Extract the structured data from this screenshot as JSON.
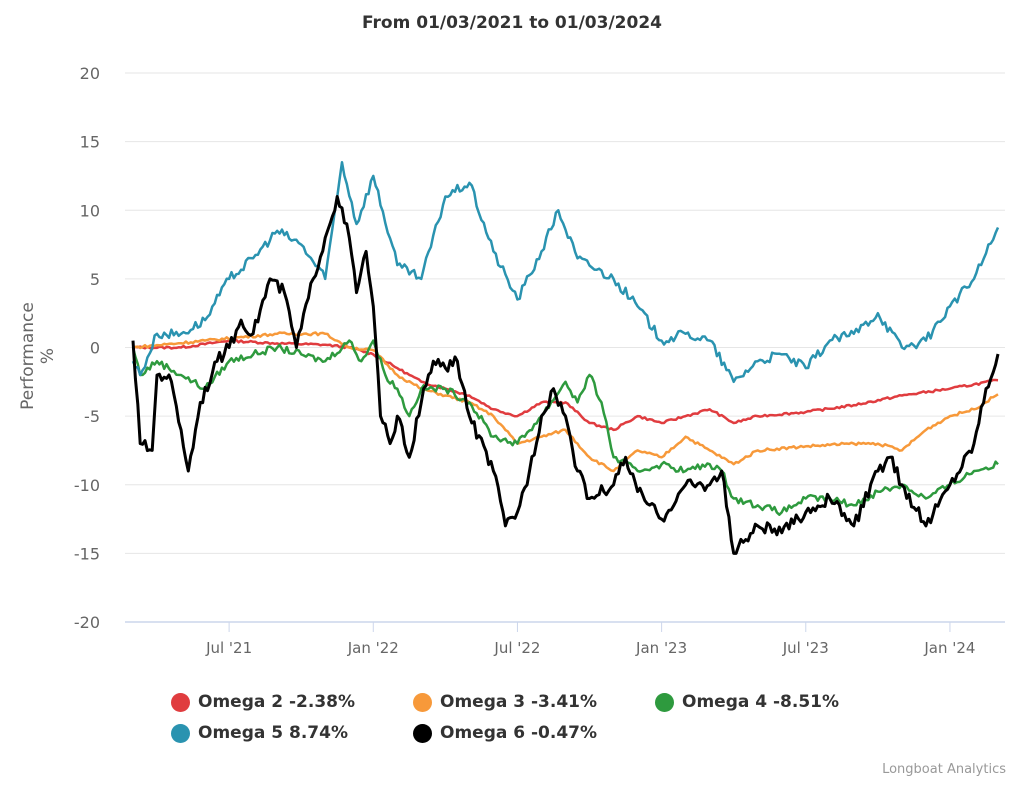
{
  "chart_data": {
    "type": "line",
    "title": "From 01/03/2021 to 01/03/2024",
    "xlabel": "",
    "ylabel": "Performance %",
    "ylim": [
      -20,
      20
    ],
    "yticks": [
      "20",
      "15",
      "10",
      "5",
      "0",
      "-5",
      "-10",
      "-15",
      "-20"
    ],
    "ytick_values": [
      20,
      15,
      10,
      5,
      0,
      -5,
      -10,
      -15,
      -20
    ],
    "x_unit": "months since Mar 2021",
    "xlim": [
      0,
      36
    ],
    "xticks": [
      {
        "label": "Jul '21",
        "x": 4
      },
      {
        "label": "Jan '22",
        "x": 10
      },
      {
        "label": "Jul '22",
        "x": 16
      },
      {
        "label": "Jan '23",
        "x": 22
      },
      {
        "label": "Jul '23",
        "x": 28
      },
      {
        "label": "Jan '24",
        "x": 34
      }
    ],
    "grid": true,
    "legend_position": "bottom",
    "series": [
      {
        "name": "Omega 2",
        "legend": "Omega 2 -2.38%",
        "color": "#e03c3f",
        "points": [
          [
            0,
            0
          ],
          [
            2,
            0
          ],
          [
            4,
            0.5
          ],
          [
            6,
            0.3
          ],
          [
            8,
            0.2
          ],
          [
            9,
            0
          ],
          [
            10,
            -0.5
          ],
          [
            11,
            -1.5
          ],
          [
            12,
            -2.5
          ],
          [
            13,
            -3
          ],
          [
            14,
            -3.5
          ],
          [
            15,
            -4.5
          ],
          [
            16,
            -5
          ],
          [
            17,
            -4
          ],
          [
            18,
            -4
          ],
          [
            19,
            -5.5
          ],
          [
            20,
            -6
          ],
          [
            21,
            -5
          ],
          [
            22,
            -5.5
          ],
          [
            23,
            -5
          ],
          [
            24,
            -4.5
          ],
          [
            25,
            -5.5
          ],
          [
            26,
            -5
          ],
          [
            28,
            -4.7
          ],
          [
            30,
            -4.2
          ],
          [
            32,
            -3.5
          ],
          [
            34,
            -3
          ],
          [
            36,
            -2.38
          ]
        ]
      },
      {
        "name": "Omega 3",
        "legend": "Omega 3 -3.41%",
        "color": "#f7993a",
        "points": [
          [
            0,
            0
          ],
          [
            3,
            0.5
          ],
          [
            6,
            1
          ],
          [
            8,
            1
          ],
          [
            9,
            0
          ],
          [
            10,
            -0.2
          ],
          [
            11,
            -2
          ],
          [
            12,
            -3
          ],
          [
            13,
            -3.5
          ],
          [
            14,
            -4
          ],
          [
            15,
            -5
          ],
          [
            16,
            -7
          ],
          [
            17,
            -6.5
          ],
          [
            18,
            -6
          ],
          [
            19,
            -8
          ],
          [
            20,
            -9
          ],
          [
            21,
            -7.5
          ],
          [
            22,
            -8
          ],
          [
            23,
            -6.5
          ],
          [
            24,
            -7.5
          ],
          [
            25,
            -8.5
          ],
          [
            26,
            -7.5
          ],
          [
            28,
            -7.2
          ],
          [
            30,
            -7
          ],
          [
            31,
            -7
          ],
          [
            32,
            -7.5
          ],
          [
            33,
            -6
          ],
          [
            34,
            -5
          ],
          [
            35,
            -4.5
          ],
          [
            36,
            -3.41
          ]
        ]
      },
      {
        "name": "Omega 4",
        "legend": "Omega 4 -8.51%",
        "color": "#2e9a3e",
        "points": [
          [
            0,
            0
          ],
          [
            0.3,
            -2
          ],
          [
            1,
            -1
          ],
          [
            2,
            -2
          ],
          [
            3,
            -3
          ],
          [
            4,
            -1
          ],
          [
            6,
            0
          ],
          [
            7,
            -0.5
          ],
          [
            8,
            -1
          ],
          [
            9,
            0.5
          ],
          [
            9.5,
            -1
          ],
          [
            10,
            0.5
          ],
          [
            10.5,
            -2
          ],
          [
            11,
            -3
          ],
          [
            11.5,
            -5
          ],
          [
            12,
            -3
          ],
          [
            13,
            -3
          ],
          [
            14,
            -4
          ],
          [
            15,
            -6.5
          ],
          [
            16,
            -7
          ],
          [
            17,
            -5
          ],
          [
            18,
            -2.5
          ],
          [
            18.5,
            -4
          ],
          [
            19,
            -2
          ],
          [
            19.5,
            -4
          ],
          [
            20,
            -8
          ],
          [
            21,
            -9
          ],
          [
            22,
            -8.5
          ],
          [
            23,
            -9
          ],
          [
            24,
            -8.5
          ],
          [
            24.5,
            -9
          ],
          [
            25,
            -11
          ],
          [
            26,
            -11.5
          ],
          [
            27,
            -12
          ],
          [
            28,
            -11
          ],
          [
            29,
            -11
          ],
          [
            30,
            -11.5
          ],
          [
            31,
            -10.5
          ],
          [
            32,
            -10
          ],
          [
            33,
            -11
          ],
          [
            34,
            -10
          ],
          [
            35,
            -9
          ],
          [
            36,
            -8.51
          ]
        ]
      },
      {
        "name": "Omega 5",
        "legend": "Omega 5 8.74%",
        "color": "#2a93b0",
        "points": [
          [
            0,
            -1
          ],
          [
            0.3,
            -2
          ],
          [
            1,
            1
          ],
          [
            2,
            1
          ],
          [
            3,
            2
          ],
          [
            4,
            5
          ],
          [
            5,
            6.5
          ],
          [
            6,
            8.5
          ],
          [
            7,
            7.5
          ],
          [
            8,
            5
          ],
          [
            8.7,
            13.5
          ],
          [
            9.3,
            9
          ],
          [
            10,
            12.5
          ],
          [
            11,
            6
          ],
          [
            12,
            5
          ],
          [
            13,
            11
          ],
          [
            14,
            12
          ],
          [
            15,
            7
          ],
          [
            16,
            3.5
          ],
          [
            17,
            7
          ],
          [
            17.7,
            10
          ],
          [
            18.5,
            6.5
          ],
          [
            20,
            5
          ],
          [
            21,
            3
          ],
          [
            22,
            0.5
          ],
          [
            23,
            1
          ],
          [
            24,
            0.5
          ],
          [
            25,
            -2.5
          ],
          [
            26,
            -1
          ],
          [
            27,
            -0.5
          ],
          [
            28,
            -1.5
          ],
          [
            29,
            0.5
          ],
          [
            30,
            1
          ],
          [
            31,
            2.5
          ],
          [
            32,
            0
          ],
          [
            33,
            0.5
          ],
          [
            34,
            3
          ],
          [
            35,
            5
          ],
          [
            36,
            8.74
          ]
        ]
      },
      {
        "name": "Omega 6",
        "legend": "Omega 6 -0.47%",
        "color": "#000000",
        "points": [
          [
            0,
            0.5
          ],
          [
            0.3,
            -7
          ],
          [
            0.8,
            -7.5
          ],
          [
            1,
            -2
          ],
          [
            1.5,
            -2
          ],
          [
            2,
            -6
          ],
          [
            2.3,
            -9
          ],
          [
            2.8,
            -4
          ],
          [
            3.5,
            -1
          ],
          [
            4,
            0
          ],
          [
            4.5,
            2
          ],
          [
            5,
            1
          ],
          [
            5.7,
            5
          ],
          [
            6.3,
            4
          ],
          [
            6.8,
            0
          ],
          [
            7.5,
            5
          ],
          [
            8,
            8
          ],
          [
            8.5,
            11
          ],
          [
            9,
            8
          ],
          [
            9.3,
            4
          ],
          [
            9.7,
            7
          ],
          [
            10,
            3
          ],
          [
            10.3,
            -5
          ],
          [
            10.7,
            -7
          ],
          [
            11,
            -5
          ],
          [
            11.5,
            -8
          ],
          [
            12,
            -4
          ],
          [
            12.5,
            -1
          ],
          [
            13,
            -1.5
          ],
          [
            13.5,
            -1
          ],
          [
            14,
            -5
          ],
          [
            15,
            -9
          ],
          [
            15.5,
            -13
          ],
          [
            16,
            -12
          ],
          [
            16.5,
            -9
          ],
          [
            17,
            -5
          ],
          [
            17.5,
            -3
          ],
          [
            18,
            -5
          ],
          [
            18.5,
            -9
          ],
          [
            19,
            -11
          ],
          [
            20,
            -10
          ],
          [
            20.5,
            -8
          ],
          [
            21,
            -10.5
          ],
          [
            22,
            -12.5
          ],
          [
            23,
            -10
          ],
          [
            24,
            -10
          ],
          [
            24.5,
            -9
          ],
          [
            25,
            -15
          ],
          [
            25.5,
            -14
          ],
          [
            26,
            -13
          ],
          [
            27,
            -13.5
          ],
          [
            28,
            -12
          ],
          [
            29,
            -11
          ],
          [
            30,
            -13
          ],
          [
            31,
            -9
          ],
          [
            31.5,
            -8
          ],
          [
            32,
            -10
          ],
          [
            33,
            -13
          ],
          [
            34,
            -10
          ],
          [
            35,
            -7
          ],
          [
            35.5,
            -3
          ],
          [
            36,
            -0.47
          ]
        ]
      }
    ]
  },
  "credit": "Longboat Analytics"
}
